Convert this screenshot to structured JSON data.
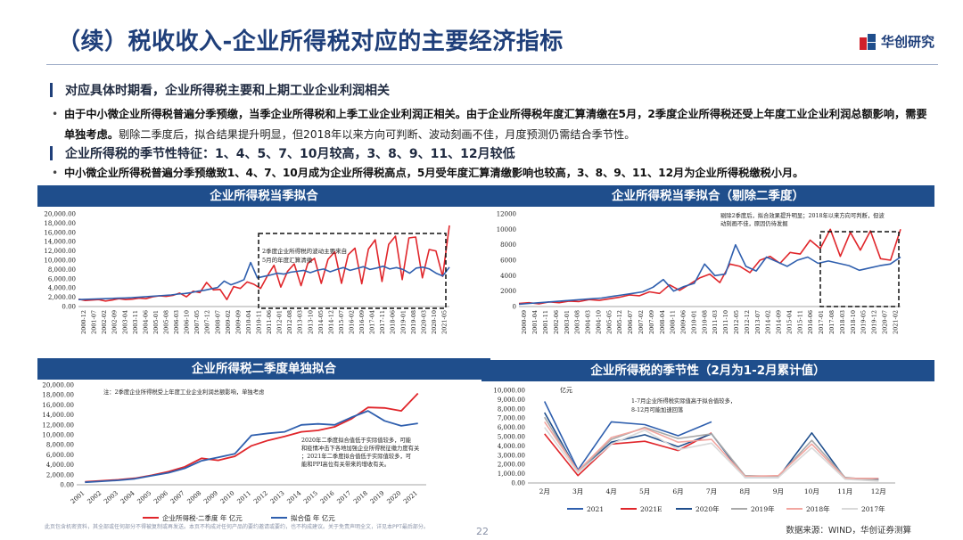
{
  "header": {
    "title": "（续）税收收入-企业所得税对应的主要经济指标",
    "logo_text": "华创研究"
  },
  "section1": {
    "heading": "对应具体时期看，企业所得税主要和上期工业企业利润相关",
    "bullet_bold": "由于中小微企业所得税普遍分季预缴，当季企业所得税和上季工业企业利润正相关。由于企业所得税年度汇算清缴在5月，2季度企业所得税还受上年度工业企业利润总额影响，需要单独考虑。",
    "bullet_rest": "剔除二季度后，拟合结果提升明显，但2018年以来方向可判断、波动刻画不佳，月度预测仍需结合季节性。"
  },
  "section2": {
    "heading": "企业所得税的季节性特征：1、4、5、7、10月较高，3、8、9、11、12月较低",
    "bullet": "中小微企业所得税普遍分季预缴致1、4、7、10月成为企业所得税高点，5月受年度汇算清缴影响也较高，3、8、9、11、12月为企业所得税缴税小月。"
  },
  "panels": {
    "p1_title": "企业所得税当季拟合",
    "p2_title": "企业所得税当季拟合（剔除二季度）",
    "p3_title": "企业所得税二季度单独拟合",
    "p4_title": "企业所得税的季节性（2月为1-2月累计值）"
  },
  "chart_data": [
    {
      "type": "line",
      "title": "企业所得税当季拟合",
      "annotation": "2季度企业所得税的波动主要来自5月的年度汇算清缴",
      "yticks": [
        "20,000.00",
        "18,000.00",
        "16,000.00",
        "14,000.00",
        "12,000.00",
        "10,000.00",
        "8,000.00",
        "6,000.00",
        "4,000.00",
        "2,000.00",
        "0.00"
      ],
      "ylim": [
        0,
        20000
      ],
      "xticks": [
        "2000-12",
        "2001-07",
        "2002-02",
        "2002-09",
        "2003-04",
        "2003-11",
        "2004-06",
        "2005-01",
        "2005-08",
        "2006-03",
        "2006-10",
        "2007-05",
        "2007-12",
        "2008-07",
        "2009-02",
        "2009-09",
        "2010-04",
        "2010-11",
        "2011-06",
        "2012-01",
        "2012-08",
        "2013-03",
        "2013-10",
        "2014-05",
        "2014-12",
        "2015-07",
        "2016-02",
        "2016-09",
        "2017-04",
        "2017-11",
        "2018-06",
        "2019-01",
        "2019-08",
        "2020-03",
        "2020-10",
        "2021-05"
      ],
      "series": [
        {
          "name": "税收收入:企业所得税:当季值 季 亿元",
          "color": "#e0262b",
          "values": [
            1600,
            1300,
            1400,
            1500,
            1200,
            1400,
            1700,
            1500,
            1600,
            1800,
            1700,
            2100,
            2300,
            2200,
            2400,
            2900,
            2100,
            3300,
            3000,
            5200,
            3600,
            3700,
            1500,
            4300,
            3900,
            5300,
            4800,
            3900,
            6600,
            8900,
            4200,
            7600,
            9200,
            4500,
            9300,
            10400,
            5000,
            10200,
            11800,
            5000,
            11200,
            12600,
            4900,
            12400,
            14400,
            5400,
            13400,
            15200,
            5800,
            14800,
            15000,
            6200,
            12300,
            12000,
            6500,
            17500
          ]
        },
        {
          "name": "拟合值 季 亿元",
          "color": "#2f5fae",
          "values": [
            1500,
            1550,
            1600,
            1650,
            1700,
            1750,
            1800,
            1850,
            1900,
            2000,
            2100,
            2200,
            2300,
            2400,
            2500,
            2700,
            2800,
            3000,
            3300,
            3500,
            3800,
            4100,
            5500,
            4700,
            5200,
            5800,
            9500,
            6200,
            6500,
            6800,
            7200,
            7000,
            7400,
            7600,
            7800,
            7300,
            7800,
            8100,
            7500,
            8000,
            8400,
            7800,
            8200,
            8600,
            8000,
            8300,
            8700,
            8100,
            8400,
            8000,
            7200,
            8300,
            8500,
            8100,
            7200,
            6600,
            8500
          ]
        }
      ]
    },
    {
      "type": "line",
      "title": "企业所得税当季拟合（剔除二季度）",
      "annotation": "剔除2季度后，拟合效果提升明显；2018年以来方向可判断，但波动刻画不佳，原因仍待发掘",
      "yticks": [
        "12000",
        "10000",
        "8000",
        "6000",
        "4000",
        "2000",
        "0"
      ],
      "ylim": [
        0,
        12000
      ],
      "xticks": [
        "2000-09",
        "2001-04",
        "2001-11",
        "2002-06",
        "2003-01",
        "2003-08",
        "2004-03",
        "2004-10",
        "2005-05",
        "2005-12",
        "2006-07",
        "2007-02",
        "2007-09",
        "2008-04",
        "2008-11",
        "2009-06",
        "2010-01",
        "2010-08",
        "2011-03",
        "2011-10",
        "2012-05",
        "2012-12",
        "2013-07",
        "2014-02",
        "2014-09",
        "2015-04",
        "2015-11",
        "2016-06",
        "2017-01",
        "2017-08",
        "2018-03",
        "2018-10",
        "2019-05",
        "2019-12",
        "2020-07",
        "2021-02"
      ],
      "series": [
        {
          "name": "税收收入:企业所得税:当季值 季 亿元",
          "color": "#e0262b",
          "values": [
            400,
            500,
            350,
            600,
            500,
            700,
            650,
            900,
            800,
            1000,
            1200,
            1500,
            1400,
            1900,
            1700,
            2800,
            2100,
            2900,
            3700,
            4200,
            3100,
            5500,
            5200,
            4400,
            6000,
            6500,
            5600,
            7000,
            6800,
            8600,
            7500,
            10000,
            6500,
            9600,
            7300,
            9800,
            6200,
            6000,
            10000
          ]
        },
        {
          "name": "拟合值 季 亿元",
          "color": "#2f5fae",
          "values": [
            300,
            400,
            500,
            600,
            700,
            800,
            900,
            1000,
            1100,
            1300,
            1500,
            1700,
            1900,
            2500,
            3500,
            2000,
            2600,
            3000,
            5500,
            4000,
            4200,
            8000,
            5200,
            4600,
            6400,
            5800,
            5200,
            6000,
            6400,
            5600,
            5900,
            5600,
            5300,
            4700,
            5000,
            5300,
            5500,
            6400
          ]
        }
      ]
    },
    {
      "type": "line",
      "title": "企业所得税二季度单独拟合",
      "annotation_top": "注：2季度企业所得税受上年度工业企业利润总额影响，单独考虑",
      "annotation_mid": "2020年二季度拟合值低于实际值较多，可能和疫情冲击下各地加强企业所得税征缴力度有关；2021年二季度拟合值低于实际值较多，可能和PPI高位有关带来的增收有关。",
      "yticks": [
        "20,000.00",
        "18,000.00",
        "16,000.00",
        "14,000.00",
        "12,000.00",
        "10,000.00",
        "8,000.00",
        "6,000.00",
        "4,000.00",
        "2,000.00",
        "0.00"
      ],
      "ylim": [
        0,
        20000
      ],
      "categories": [
        "2001",
        "2002",
        "2003",
        "2004",
        "2005",
        "2006",
        "2007",
        "2008",
        "2009",
        "2010",
        "2011",
        "2012",
        "2013",
        "2014",
        "2015",
        "2016",
        "2017",
        "2018",
        "2019",
        "2020",
        "2021"
      ],
      "series": [
        {
          "name": "企业所得税-二季度 年 亿元",
          "color": "#e0262b",
          "values": [
            600,
            800,
            1000,
            1300,
            1900,
            2600,
            3600,
            5300,
            4900,
            5700,
            7800,
            8900,
            9700,
            10600,
            10900,
            11600,
            13200,
            15500,
            15400,
            14800,
            18300
          ]
        },
        {
          "name": "拟合值 年 亿元",
          "color": "#2f5fae",
          "values": [
            500,
            700,
            900,
            1200,
            1800,
            2400,
            3300,
            4800,
            5500,
            6200,
            9900,
            10300,
            10600,
            12000,
            12200,
            12000,
            13500,
            14800,
            12800,
            11800,
            12300
          ]
        }
      ]
    },
    {
      "type": "line",
      "title": "企业所得税的季节性（2月为1-2月累计值）",
      "ylabel": "亿元",
      "annotation": "1-7月企业所得税实际值高于拟合值较多，8-12月可能加速回落",
      "yticks": [
        "10,000.00",
        "9,000.00",
        "8,000.00",
        "7,000.00",
        "6,000.00",
        "5,000.00",
        "4,000.00",
        "3,000.00",
        "2,000.00",
        "1,000.00",
        "0.00"
      ],
      "ylim": [
        0,
        10000
      ],
      "categories": [
        "2月",
        "3月",
        "4月",
        "5月",
        "6月",
        "7月",
        "8月",
        "9月",
        "10月",
        "11月",
        "12月"
      ],
      "series": [
        {
          "name": "2021",
          "color": "#2f5fae",
          "values": [
            8800,
            1400,
            6600,
            6300,
            5100,
            6600,
            null,
            null,
            null,
            null,
            null
          ]
        },
        {
          "name": "2021E",
          "color": "#e0262b",
          "values": [
            5300,
            800,
            4200,
            4500,
            3500,
            5400,
            null,
            null,
            null,
            null,
            null
          ]
        },
        {
          "name": "2020年",
          "color": "#1f4e8c",
          "values": [
            7600,
            1200,
            4400,
            5200,
            3900,
            5300,
            600,
            600,
            5400,
            500,
            400
          ]
        },
        {
          "name": "2019年",
          "color": "#a9a9a9",
          "values": [
            7100,
            1200,
            4700,
            6000,
            4800,
            5300,
            800,
            700,
            4600,
            600,
            300
          ]
        },
        {
          "name": "2018年",
          "color": "#f2a6a0",
          "values": [
            6600,
            1300,
            4900,
            5900,
            4400,
            4700,
            700,
            800,
            4200,
            500,
            500
          ]
        },
        {
          "name": "2017年",
          "color": "#d9d9d9",
          "values": [
            6000,
            1100,
            4200,
            5700,
            3600,
            4300,
            600,
            600,
            3800,
            400,
            200
          ]
        }
      ]
    }
  ],
  "footer": {
    "disclaimer": "此页包含机密资料，其全部或任何部分不得被复制或再发送。本页不构成对任何产品的要约邀请或要约，也不构成建议。关于免责声明全文，详见本PPT最后部分。",
    "page_number": "22",
    "source": "数据来源：WIND，华创证券测算"
  },
  "colors": {
    "brand_blue": "#1f4e8c",
    "title_blue": "#1f3f7a",
    "red": "#e0262b",
    "blue": "#2f5fae"
  }
}
